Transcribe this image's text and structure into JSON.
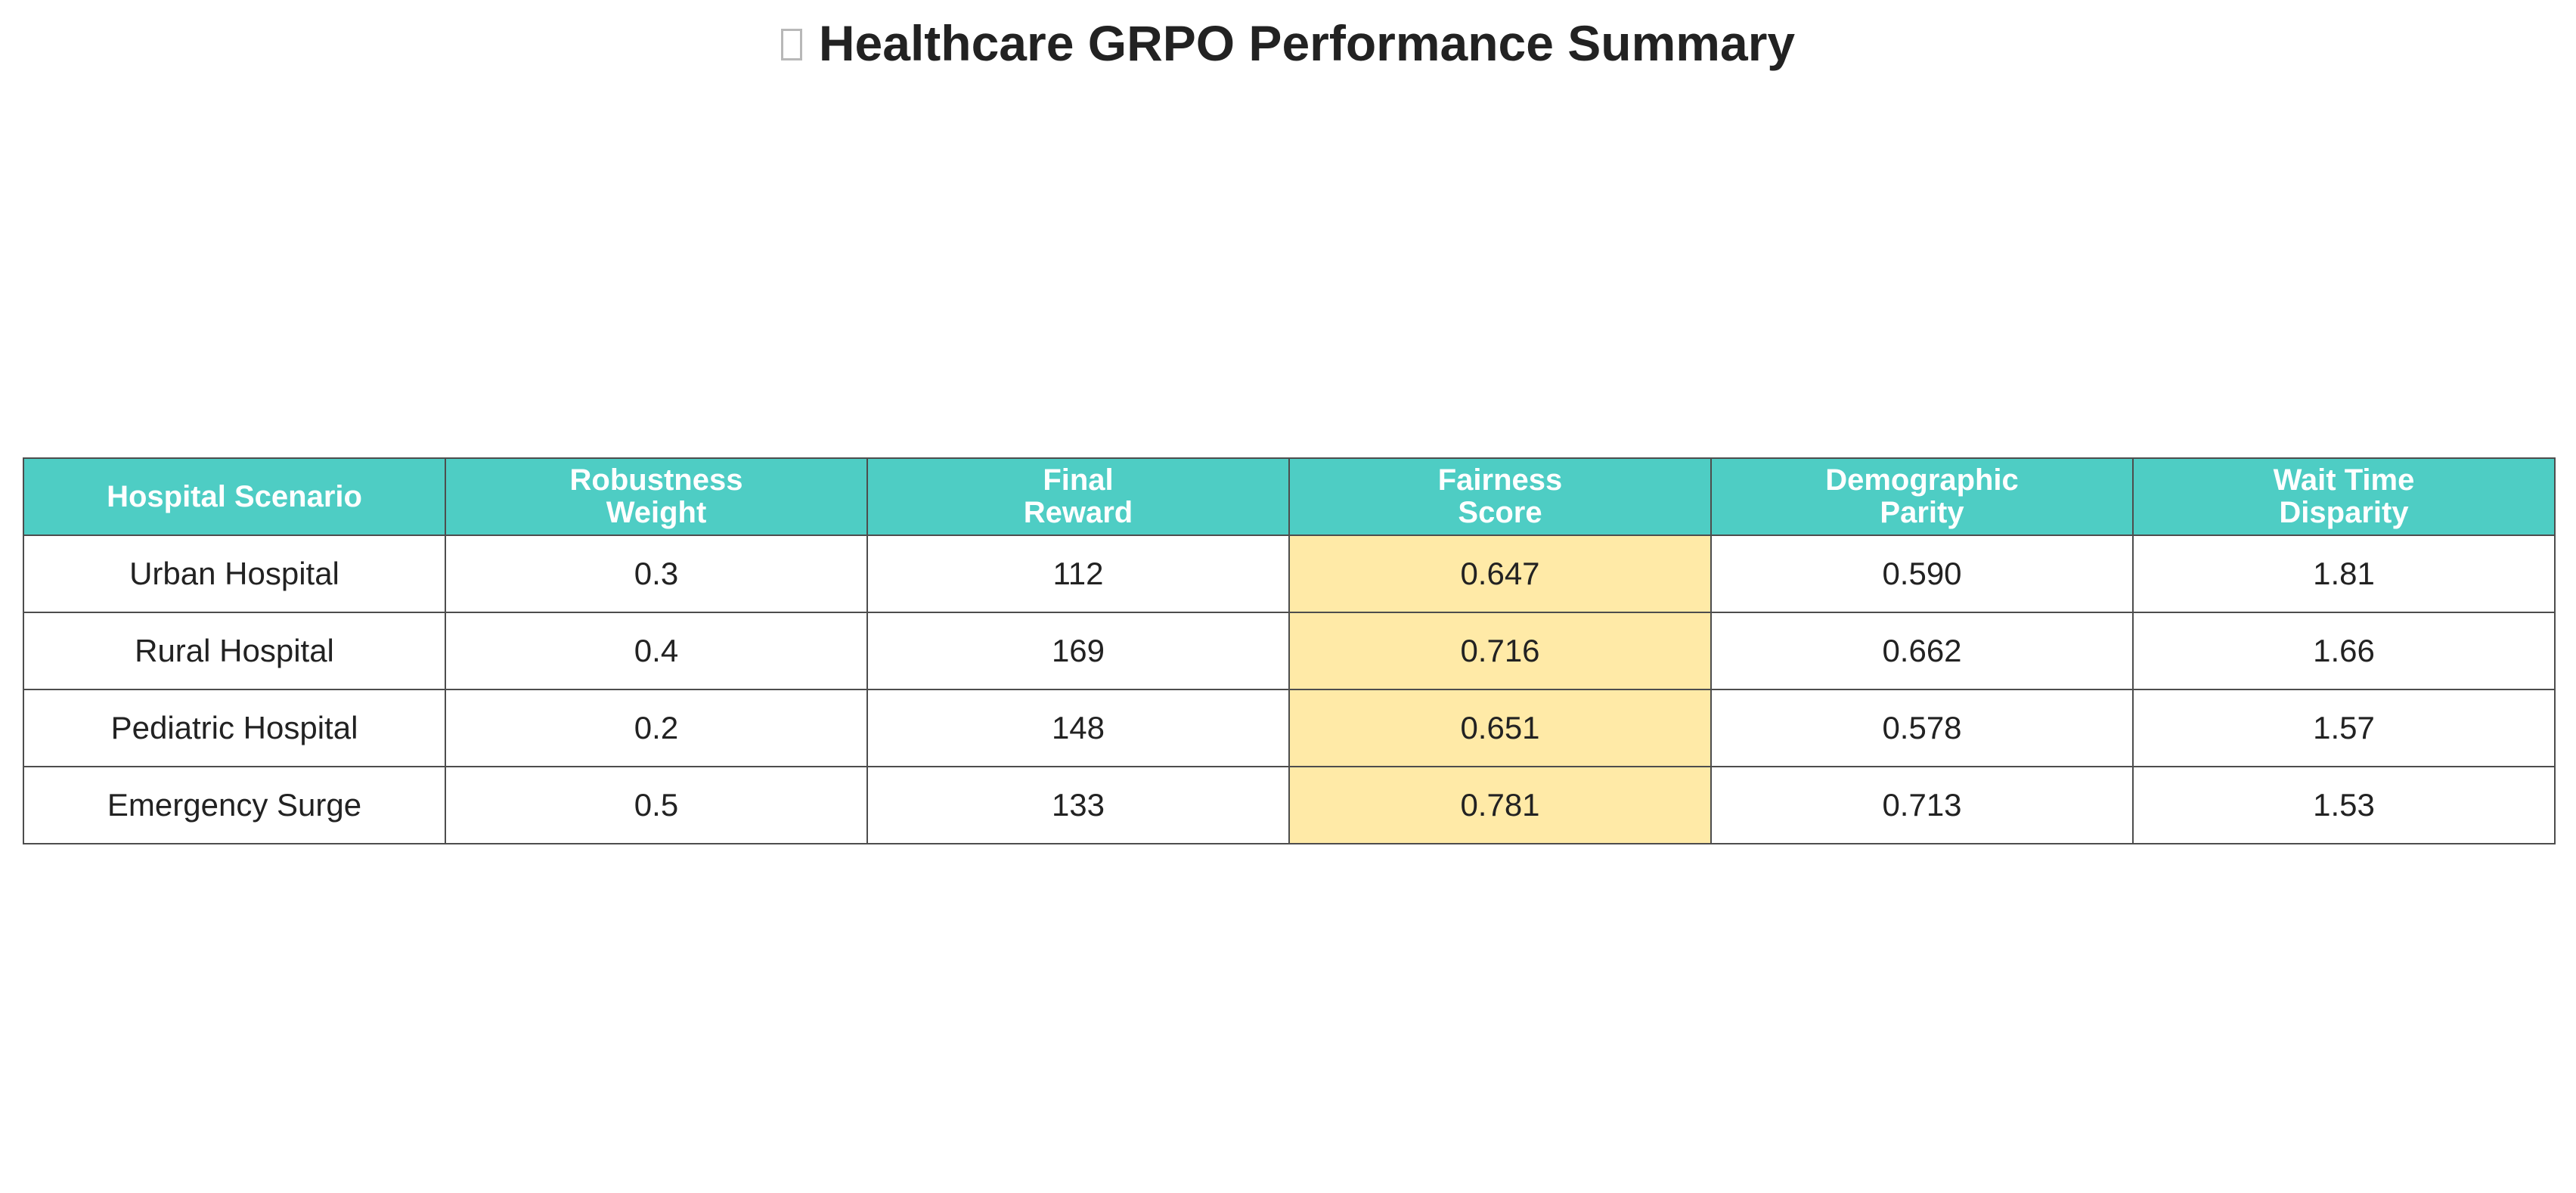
{
  "chart_data": {
    "type": "table",
    "title": "Healthcare GRPO Performance Summary",
    "title_icon": "missing-glyph-box",
    "columns": [
      [
        "Hospital Scenario"
      ],
      [
        "Robustness",
        "Weight"
      ],
      [
        "Final",
        "Reward"
      ],
      [
        "Fairness",
        "Score"
      ],
      [
        "Demographic",
        "Parity"
      ],
      [
        "Wait Time",
        "Disparity"
      ]
    ],
    "rows": [
      [
        "Urban Hospital",
        "0.3",
        "112",
        "0.647",
        "0.590",
        "1.81"
      ],
      [
        "Rural Hospital",
        "0.4",
        "169",
        "0.716",
        "0.662",
        "1.66"
      ],
      [
        "Pediatric Hospital",
        "0.2",
        "148",
        "0.651",
        "0.578",
        "1.57"
      ],
      [
        "Emergency Surge",
        "0.5",
        "133",
        "0.781",
        "0.713",
        "1.53"
      ]
    ],
    "highlight_column": 3,
    "colors": {
      "header_bg": "#4ecdc4",
      "header_text": "#ffffff",
      "highlight_bg": "#ffeaa7",
      "border": "#4d4d4d",
      "text": "#222222"
    }
  }
}
